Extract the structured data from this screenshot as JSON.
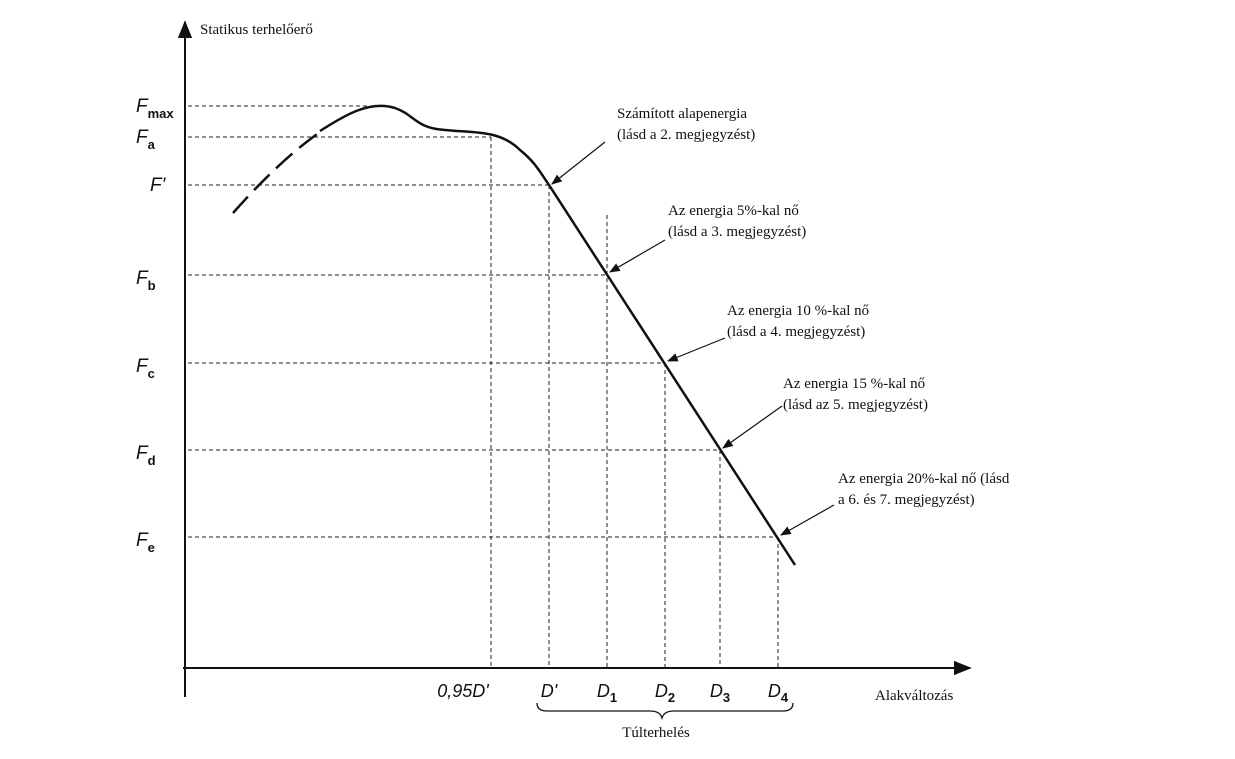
{
  "axes": {
    "y_label": "Statikus terhelőerő",
    "x_label": "Alakváltozás"
  },
  "y_labels": [
    {
      "base": "F",
      "sub": "max"
    },
    {
      "base": "F",
      "sub": "a"
    },
    {
      "base": "F'"
    },
    {
      "base": "F",
      "sub": "b"
    },
    {
      "base": "F",
      "sub": "c"
    },
    {
      "base": "F",
      "sub": "d"
    },
    {
      "base": "F",
      "sub": "e"
    }
  ],
  "x_labels": [
    {
      "base": "0,95D'"
    },
    {
      "base": "D'"
    },
    {
      "base": "D",
      "sub": "1"
    },
    {
      "base": "D",
      "sub": "2"
    },
    {
      "base": "D",
      "sub": "3"
    },
    {
      "base": "D",
      "sub": "4"
    }
  ],
  "bracket_label": "Túlterhelés",
  "annotations": [
    {
      "lines": [
        "Számított alapenergia",
        "(lásd a 2. megjegyzést)"
      ]
    },
    {
      "lines": [
        "Az energia 5%-kal nő",
        "(lásd a 3. megjegyzést)"
      ]
    },
    {
      "lines": [
        "Az energia 10 %-kal nő",
        "(lásd a 4. megjegyzést)"
      ]
    },
    {
      "lines": [
        "Az energia 15 %-kal nő",
        "(lásd az 5. megjegyzést)"
      ]
    },
    {
      "lines": [
        "Az energia 20%-kal nő (lásd",
        "a 6. és 7. megjegyzést)"
      ]
    }
  ]
}
